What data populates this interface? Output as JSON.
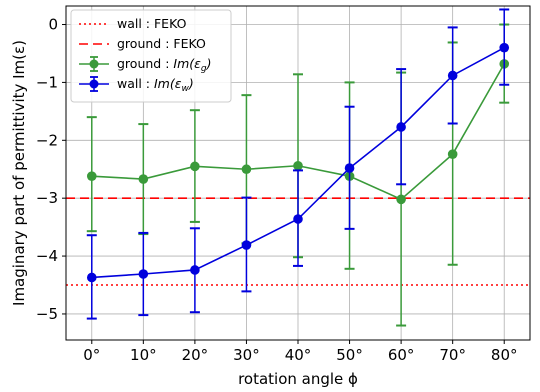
{
  "chart_data": {
    "type": "line",
    "xlabel": "rotation angle ϕ",
    "ylabel": "Imaginary part of permittivity Im(ε)",
    "categories": [
      "0°",
      "10°",
      "20°",
      "30°",
      "40°",
      "50°",
      "60°",
      "70°",
      "80°"
    ],
    "x_values": [
      0,
      10,
      20,
      30,
      40,
      50,
      60,
      70,
      80
    ],
    "xlim": [
      -5,
      85
    ],
    "ylim": [
      -5.45,
      0.32
    ],
    "y_ticks": [
      0,
      -1,
      -2,
      -3,
      -4,
      -5
    ],
    "y_tick_labels": [
      "0",
      "−1",
      "−2",
      "−3",
      "−4",
      "−5"
    ],
    "grid": true,
    "legend_position": "top-left",
    "reference_lines": [
      {
        "name": "wall : FEKO",
        "y": -4.5,
        "color": "#ff0000",
        "style": "dotted"
      },
      {
        "name": "ground : FEKO",
        "y": -3.0,
        "color": "#ff0000",
        "style": "dashed"
      }
    ],
    "series": [
      {
        "name": "ground : Im(ε_g)",
        "legend_main": "ground : ",
        "legend_math": "Im(ε",
        "legend_sub": "g",
        "legend_close": ")",
        "color": "#3a9a3a",
        "values": [
          -2.62,
          -2.67,
          -2.45,
          -2.5,
          -2.44,
          -2.62,
          -3.02,
          -2.24,
          -0.68
        ],
        "err_low": [
          -3.57,
          -3.62,
          -3.41,
          -3.78,
          -4.02,
          -4.22,
          -5.2,
          -4.15,
          -1.35
        ],
        "err_high": [
          -1.6,
          -1.72,
          -1.48,
          -1.22,
          -0.86,
          -1.0,
          -0.83,
          -0.31,
          0.0
        ]
      },
      {
        "name": "wall : Im(ε_w)",
        "legend_main": "wall : ",
        "legend_math": "Im(ε",
        "legend_sub": "w",
        "legend_close": ")",
        "color": "#0000dd",
        "values": [
          -4.37,
          -4.31,
          -4.24,
          -3.81,
          -3.36,
          -2.48,
          -1.77,
          -0.88,
          -0.4
        ],
        "err_low": [
          -5.08,
          -5.02,
          -4.97,
          -4.61,
          -4.17,
          -3.53,
          -2.76,
          -1.71,
          -1.04
        ],
        "err_high": [
          -3.64,
          -3.6,
          -3.52,
          -2.99,
          -2.52,
          -1.42,
          -0.77,
          -0.05,
          0.26
        ]
      }
    ]
  }
}
